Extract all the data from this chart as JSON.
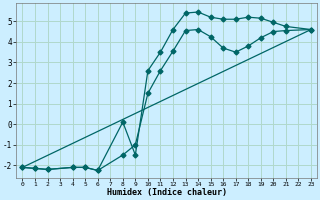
{
  "xlabel": "Humidex (Indice chaleur)",
  "ylabel": "",
  "bg_color": "#cceeff",
  "grid_color": "#b0d8cc",
  "line_color": "#006666",
  "xlim": [
    -0.5,
    23.5
  ],
  "ylim": [
    -2.6,
    5.9
  ],
  "xticks": [
    0,
    1,
    2,
    3,
    4,
    5,
    6,
    7,
    8,
    9,
    10,
    11,
    12,
    13,
    14,
    15,
    16,
    17,
    18,
    19,
    20,
    21,
    22,
    23
  ],
  "yticks": [
    -2,
    -1,
    0,
    1,
    2,
    3,
    4,
    5
  ],
  "line1_x": [
    0,
    1,
    2,
    4,
    5,
    6,
    8,
    9,
    10,
    11,
    12,
    13,
    14,
    15,
    16,
    17,
    18,
    19,
    20,
    21,
    23
  ],
  "line1_y": [
    -2.1,
    -2.15,
    -2.2,
    -2.1,
    -2.1,
    -2.25,
    0.1,
    -1.5,
    2.6,
    3.5,
    4.6,
    5.4,
    5.45,
    5.2,
    5.1,
    5.1,
    5.2,
    5.15,
    4.95,
    4.75,
    4.6
  ],
  "line2_x": [
    0,
    1,
    2,
    4,
    5,
    6,
    8,
    9,
    10,
    11,
    12,
    13,
    14,
    15,
    16,
    17,
    18,
    19,
    20,
    21,
    23
  ],
  "line2_y": [
    -2.1,
    -2.15,
    -2.2,
    -2.1,
    -2.1,
    -2.25,
    -1.5,
    -1.0,
    1.5,
    2.6,
    3.55,
    4.55,
    4.6,
    4.25,
    3.7,
    3.5,
    3.8,
    4.2,
    4.5,
    4.55,
    4.6
  ],
  "line3_x": [
    0,
    23
  ],
  "line3_y": [
    -2.1,
    4.6
  ]
}
